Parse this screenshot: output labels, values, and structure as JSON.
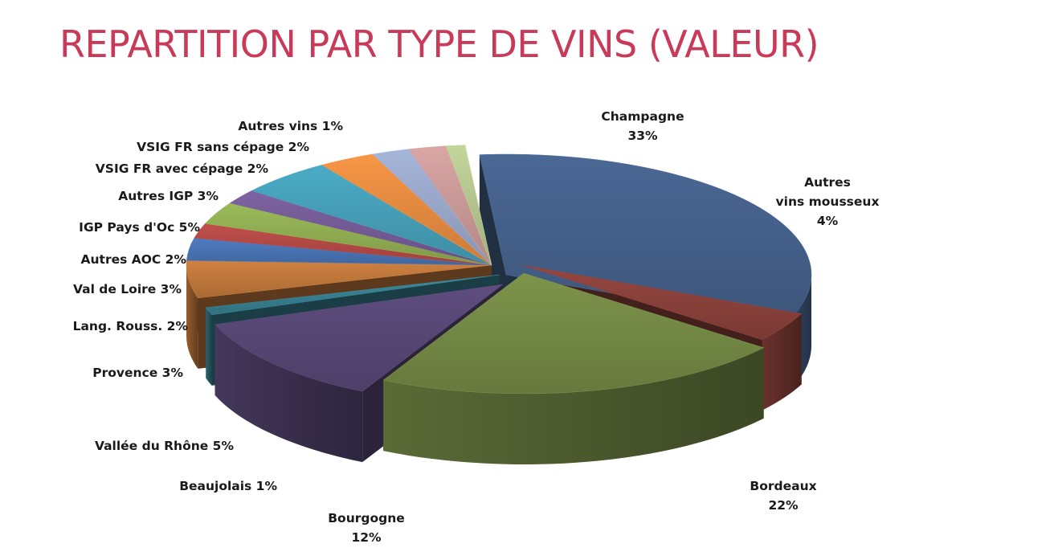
{
  "chart_data": {
    "type": "pie",
    "title": "REPARTITION PAR TYPE DE VINS (VALEUR)",
    "slices": [
      {
        "key": "champagne",
        "label": "Champagne",
        "value": 33,
        "pct": "33%",
        "color": "#4a6895"
      },
      {
        "key": "autres-mousseux",
        "label": "Autres vins mousseux",
        "label_lines": [
          "Autres",
          "vins mousseux"
        ],
        "value": 4,
        "pct": "4%",
        "color": "#95463f"
      },
      {
        "key": "bordeaux",
        "label": "Bordeaux",
        "value": 22,
        "pct": "22%",
        "color": "#7d944b"
      },
      {
        "key": "bourgogne",
        "label": "Bourgogne",
        "value": 12,
        "pct": "12%",
        "color": "#5e4d7f"
      },
      {
        "key": "beaujolais",
        "label": "Beaujolais",
        "value": 1,
        "pct": "1%",
        "color": "#3c8a9c"
      },
      {
        "key": "vallee-du-rhone",
        "label": "Vallée du Rhône",
        "value": 5,
        "pct": "5%",
        "color": "#cf8140"
      },
      {
        "key": "provence",
        "label": "Provence",
        "value": 3,
        "pct": "3%",
        "color": "#4e7cc2"
      },
      {
        "key": "lang-rouss",
        "label": "Lang. Rouss.",
        "value": 2,
        "pct": "2%",
        "color": "#c14f4b"
      },
      {
        "key": "val-de-loire",
        "label": "Val de Loire",
        "value": 3,
        "pct": "3%",
        "color": "#9bbb59"
      },
      {
        "key": "autres-aoc",
        "label": "Autres AOC",
        "value": 2,
        "pct": "2%",
        "color": "#7e63a2"
      },
      {
        "key": "igp-pays-doc",
        "label": "IGP Pays d'Oc",
        "value": 5,
        "pct": "5%",
        "color": "#4bacc6"
      },
      {
        "key": "autres-igp",
        "label": "Autres IGP",
        "value": 3,
        "pct": "3%",
        "color": "#f79646"
      },
      {
        "key": "vsig-avec-cepage",
        "label": "VSIG FR avec cépage",
        "value": 2,
        "pct": "2%",
        "color": "#a6b6da"
      },
      {
        "key": "vsig-sans-cepage",
        "label": "VSIG FR sans cépage",
        "value": 2,
        "pct": "2%",
        "color": "#d9a6a4"
      },
      {
        "key": "autres-vins",
        "label": "Autres vins",
        "value": 1,
        "pct": "1%",
        "color": "#c3d69b"
      }
    ]
  }
}
